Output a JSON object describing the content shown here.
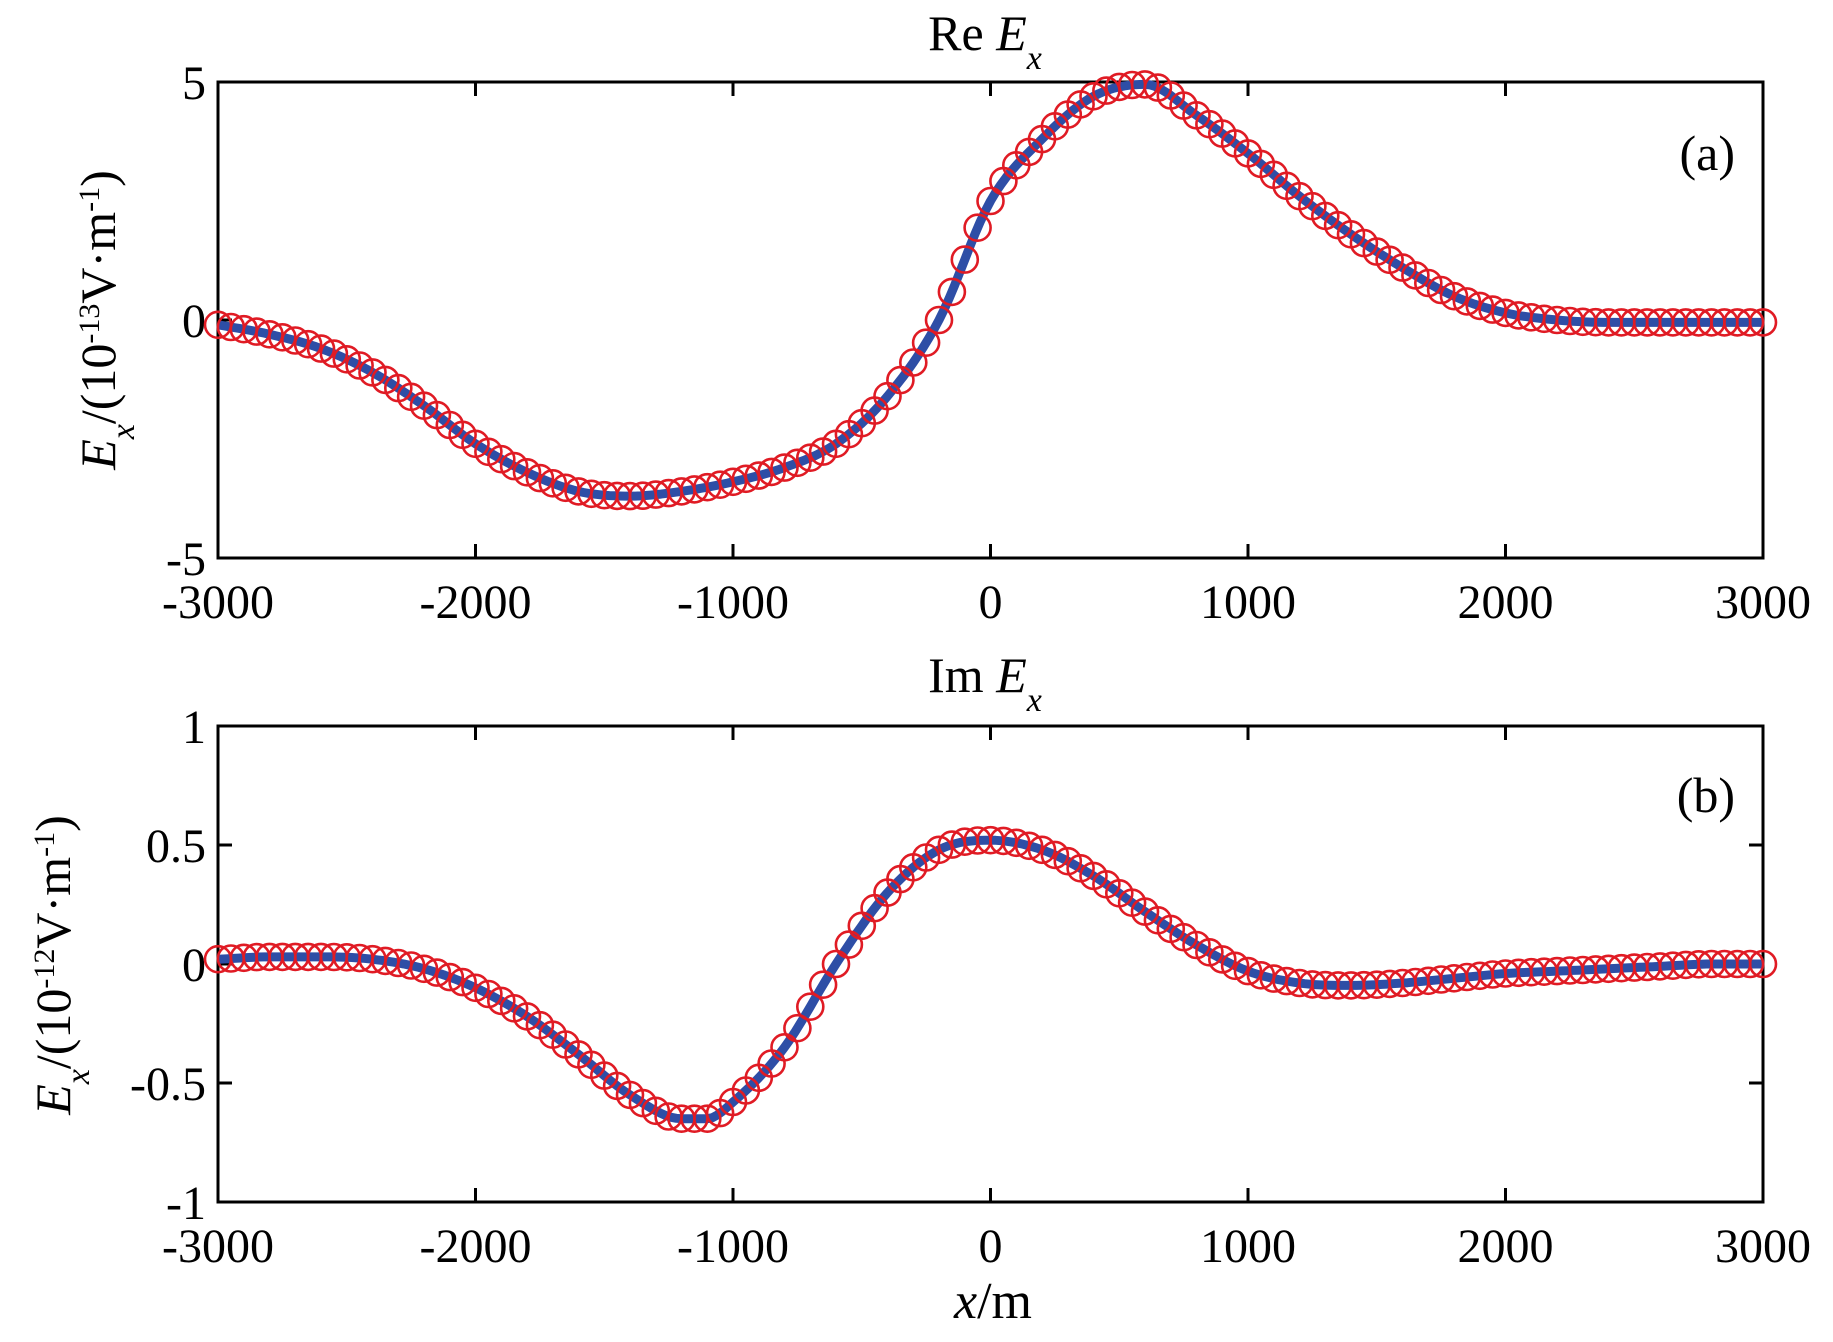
{
  "chart_data": [
    {
      "type": "line",
      "panel_label": "(a)",
      "title": {
        "prefix": "Re ",
        "italic": "E",
        "sub": "x"
      },
      "ylabel": {
        "italic": "E",
        "sub": "x",
        "rest1": "/(10",
        "sup": "-13",
        "rest2": "V·m",
        "sup2": "-1",
        "rest3": ")"
      },
      "xlim": [
        -3000,
        3000
      ],
      "ylim": [
        -5,
        5
      ],
      "xticks": [
        -3000,
        -2000,
        -1000,
        0,
        1000,
        2000,
        3000
      ],
      "xtick_labels": [
        "-3000",
        "-2000",
        "-1000",
        "0",
        "1000",
        "2000",
        "3000"
      ],
      "yticks": [
        -5,
        0,
        5
      ],
      "ytick_labels": [
        "-5",
        "0",
        "5"
      ],
      "series": [
        {
          "style": "solid line",
          "color": "#2e4ea6",
          "x": [
            -3000,
            -2800,
            -2600,
            -2400,
            -2200,
            -2000,
            -1800,
            -1600,
            -1400,
            -1200,
            -1000,
            -800,
            -600,
            -400,
            -200,
            0,
            200,
            400,
            600,
            800,
            1000,
            1200,
            1400,
            1600,
            1800,
            2000,
            2200,
            2400,
            2600,
            2800,
            3000
          ],
          "y": [
            -0.1,
            -0.3,
            -0.6,
            -1.1,
            -1.8,
            -2.6,
            -3.2,
            -3.6,
            -3.7,
            -3.6,
            -3.4,
            -3.1,
            -2.6,
            -1.6,
            0.0,
            2.5,
            3.8,
            4.7,
            4.95,
            4.3,
            3.5,
            2.6,
            1.8,
            1.1,
            0.5,
            0.15,
            0.0,
            -0.05,
            -0.05,
            -0.05,
            -0.05
          ]
        },
        {
          "style": "circle markers",
          "color": "#e01b24",
          "x": [
            -3000,
            -2800,
            -2600,
            -2400,
            -2200,
            -2000,
            -1800,
            -1600,
            -1400,
            -1200,
            -1000,
            -800,
            -600,
            -400,
            -200,
            0,
            200,
            400,
            600,
            800,
            1000,
            1200,
            1400,
            1600,
            1800,
            2000,
            2200,
            2400,
            2600,
            2800,
            3000
          ],
          "y": [
            -0.1,
            -0.3,
            -0.6,
            -1.1,
            -1.8,
            -2.6,
            -3.2,
            -3.6,
            -3.7,
            -3.6,
            -3.4,
            -3.1,
            -2.6,
            -1.6,
            0.0,
            2.5,
            3.8,
            4.7,
            4.95,
            4.3,
            3.5,
            2.6,
            1.8,
            1.1,
            0.5,
            0.15,
            0.0,
            -0.05,
            -0.05,
            -0.05,
            -0.05
          ]
        }
      ]
    },
    {
      "type": "line",
      "panel_label": "(b)",
      "title": {
        "prefix": "Im ",
        "italic": "E",
        "sub": "x"
      },
      "ylabel": {
        "italic": "E",
        "sub": "x",
        "rest1": "/(10",
        "sup": "-12",
        "rest2": "V·m",
        "sup2": "-1",
        "rest3": ")"
      },
      "xlabel": {
        "italic": "x",
        "rest": "/m"
      },
      "xlim": [
        -3000,
        3000
      ],
      "ylim": [
        -1,
        1
      ],
      "xticks": [
        -3000,
        -2000,
        -1000,
        0,
        1000,
        2000,
        3000
      ],
      "xtick_labels": [
        "-3000",
        "-2000",
        "-1000",
        "0",
        "1000",
        "2000",
        "3000"
      ],
      "yticks": [
        -1,
        -0.5,
        0,
        0.5,
        1
      ],
      "ytick_labels": [
        "-1",
        "-0.5",
        "0",
        "0.5",
        "1"
      ],
      "series": [
        {
          "style": "solid line",
          "color": "#2e4ea6",
          "x": [
            -3000,
            -2800,
            -2600,
            -2400,
            -2200,
            -2000,
            -1800,
            -1600,
            -1400,
            -1200,
            -1100,
            -1000,
            -800,
            -600,
            -400,
            -200,
            0,
            200,
            400,
            600,
            800,
            1000,
            1200,
            1400,
            1600,
            1800,
            2000,
            2200,
            2400,
            2600,
            2800,
            3000
          ],
          "y": [
            0.02,
            0.03,
            0.03,
            0.02,
            -0.02,
            -0.1,
            -0.22,
            -0.38,
            -0.55,
            -0.65,
            -0.65,
            -0.58,
            -0.35,
            0.0,
            0.3,
            0.48,
            0.52,
            0.48,
            0.37,
            0.22,
            0.08,
            -0.03,
            -0.08,
            -0.09,
            -0.08,
            -0.06,
            -0.04,
            -0.03,
            -0.02,
            -0.01,
            0.0,
            0.0
          ]
        },
        {
          "style": "circle markers",
          "color": "#e01b24",
          "x": [
            -3000,
            -2800,
            -2600,
            -2400,
            -2200,
            -2000,
            -1800,
            -1600,
            -1400,
            -1200,
            -1100,
            -1000,
            -800,
            -600,
            -400,
            -200,
            0,
            200,
            400,
            600,
            800,
            1000,
            1200,
            1400,
            1600,
            1800,
            2000,
            2200,
            2400,
            2600,
            2800,
            3000
          ],
          "y": [
            0.02,
            0.03,
            0.03,
            0.02,
            -0.02,
            -0.1,
            -0.22,
            -0.38,
            -0.55,
            -0.65,
            -0.65,
            -0.58,
            -0.35,
            0.0,
            0.3,
            0.48,
            0.52,
            0.48,
            0.37,
            0.22,
            0.08,
            -0.03,
            -0.08,
            -0.09,
            -0.08,
            -0.06,
            -0.04,
            -0.03,
            -0.02,
            -0.01,
            0.0,
            0.0
          ]
        }
      ]
    }
  ]
}
